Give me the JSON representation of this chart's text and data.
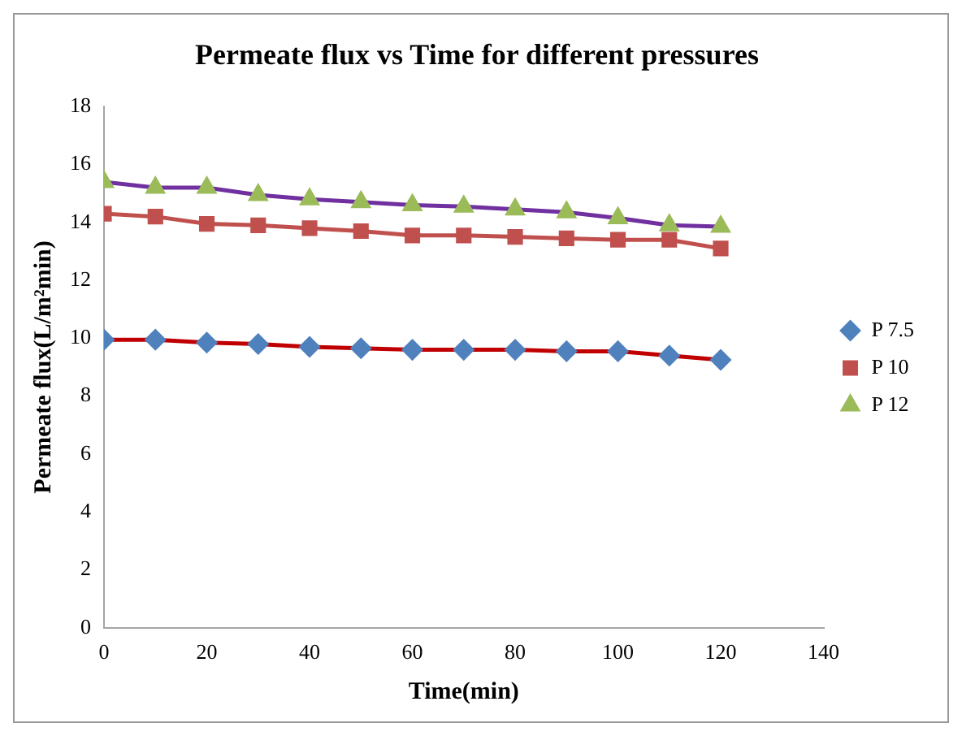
{
  "chart_data": {
    "type": "line",
    "title": "Permeate flux vs Time for different pressures",
    "xlabel": "Time(min)",
    "ylabel": "Permeate flux(L/m²min)",
    "x": [
      0,
      10,
      20,
      30,
      40,
      50,
      60,
      70,
      80,
      90,
      100,
      110,
      120
    ],
    "xlim": [
      0,
      140
    ],
    "xticks": [
      0,
      20,
      40,
      60,
      80,
      100,
      120,
      140
    ],
    "ylim": [
      0,
      18
    ],
    "yticks": [
      0,
      2,
      4,
      6,
      8,
      10,
      12,
      14,
      16,
      18
    ],
    "grid": false,
    "legend": "right",
    "series": [
      {
        "name": "P 7.5",
        "color": "#c00000",
        "marker": "diamond",
        "colors": [
          "#4f81bd",
          "#4f81bd",
          "#4f81bd",
          "#4f81bd",
          "#4f81bd",
          "#4f81bd",
          "#4f81bd",
          "#4f81bd",
          "#4f81bd",
          "#4f81bd",
          "#4f81bd",
          "#4f81bd",
          "#4f81bd"
        ],
        "values": [
          9.95,
          9.95,
          9.85,
          9.8,
          9.7,
          9.65,
          9.6,
          9.6,
          9.6,
          9.55,
          9.55,
          9.4,
          9.25
        ]
      },
      {
        "name": "P 10",
        "color": "#c0504d",
        "marker": "square",
        "colors": [
          "#c0504d",
          "#c0504d",
          "#c0504d",
          "#c0504d",
          "#c0504d",
          "#c0504d",
          "#c0504d",
          "#c0504d",
          "#c0504d",
          "#c0504d",
          "#c0504d",
          "#c0504d",
          "#c0504d"
        ],
        "values": [
          14.3,
          14.2,
          13.95,
          13.9,
          13.8,
          13.7,
          13.55,
          13.55,
          13.5,
          13.45,
          13.4,
          13.4,
          13.1
        ]
      },
      {
        "name": "P 12",
        "color": "#7030a0",
        "marker": "triangle",
        "colors": [
          "#9bbb59",
          "#9bbb59",
          "#9bbb59",
          "#9bbb59",
          "#9bbb59",
          "#9bbb59",
          "#9bbb59",
          "#9bbb59",
          "#9bbb59",
          "#9bbb59",
          "#9bbb59",
          "#9bbb59",
          "#9bbb59"
        ],
        "values": [
          15.4,
          15.2,
          15.2,
          14.95,
          14.8,
          14.7,
          14.6,
          14.55,
          14.45,
          14.35,
          14.15,
          13.9,
          13.85
        ]
      }
    ]
  }
}
